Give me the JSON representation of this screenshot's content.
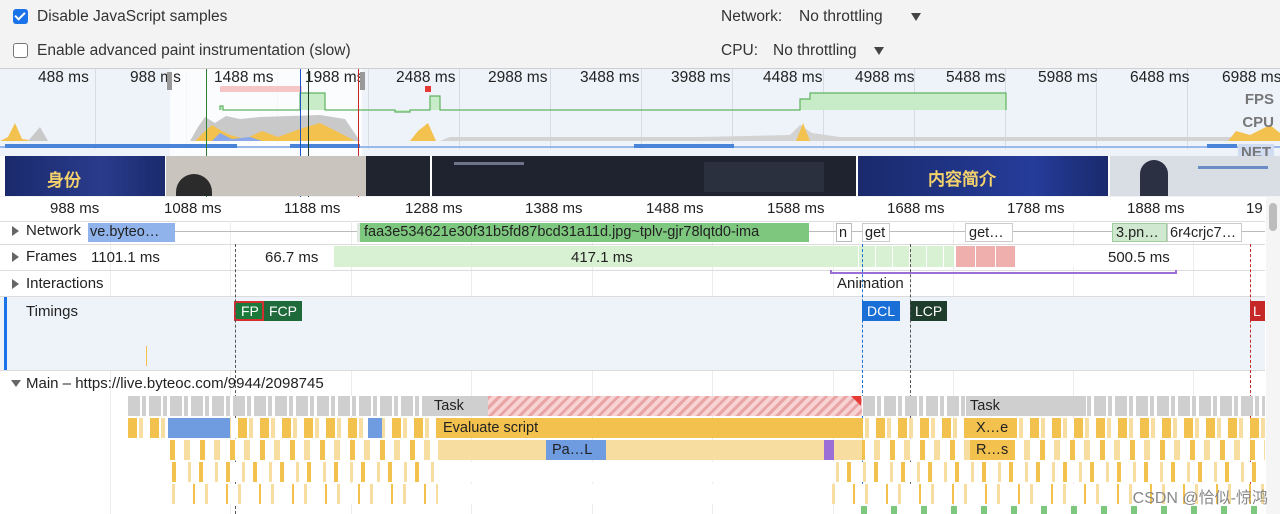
{
  "settings": {
    "disable_js_samples": {
      "label": "Disable JavaScript samples",
      "checked": true
    },
    "advanced_paint": {
      "label": "Enable advanced paint instrumentation (slow)",
      "checked": false
    },
    "network": {
      "label": "Network:",
      "value": "No throttling"
    },
    "cpu": {
      "label": "CPU:",
      "value": "No throttling"
    }
  },
  "overview": {
    "ticks": [
      "488 ms",
      "988 ms",
      "1488 ms",
      "1988 ms",
      "2488 ms",
      "2988 ms",
      "3488 ms",
      "3988 ms",
      "4488 ms",
      "4988 ms",
      "5488 ms",
      "5988 ms",
      "6488 ms",
      "6988 ms"
    ],
    "lanes": {
      "fps": "FPS",
      "cpu": "CPU",
      "net": "NET"
    },
    "film_text": [
      "身份",
      "内容简介"
    ]
  },
  "ruler": {
    "ticks": [
      "988 ms",
      "1088 ms",
      "1188 ms",
      "1288 ms",
      "1388 ms",
      "1488 ms",
      "1588 ms",
      "1688 ms",
      "1788 ms",
      "1888 ms",
      "19"
    ]
  },
  "tracks": {
    "network": {
      "label": "Network",
      "requests": [
        "ve.byteo…",
        "faa3e534621e30f31b5fd87bcd31a11d.jpg~tplv-gjr78lqtd0-ima",
        "n",
        "get",
        "get…",
        "3.pn…",
        "6r4crjc7…"
      ]
    },
    "frames": {
      "label": "Frames",
      "durations": [
        "1101.1 ms",
        "66.7 ms",
        "417.1 ms",
        "500.5 ms"
      ]
    },
    "interactions": {
      "label": "Interactions",
      "animation": "Animation"
    },
    "timings": {
      "label": "Timings",
      "markers": [
        "FP",
        "FCP",
        "DCL",
        "LCP",
        "L"
      ]
    },
    "main": {
      "label": "Main – https://live.byteoc.com/9944/2098745",
      "blocks": {
        "task1": "Task",
        "evaluate": "Evaluate script",
        "parse": "Pa…L",
        "task2": "Task",
        "xe": "X…e",
        "rs": "R…s"
      }
    }
  },
  "watermark": "CSDN @恰似-惊鸿",
  "colors": {
    "accent": "#1a73e8",
    "script": "#f2c14e",
    "script_light": "#f7dea0",
    "task": "#cfcfcf",
    "network_img": "#7ec77e",
    "network_js": "#f2c14e",
    "fp": "#1b7a3a",
    "dcl": "#1a6fd6",
    "lcp": "#1f3d2b",
    "load": "#c62828"
  }
}
